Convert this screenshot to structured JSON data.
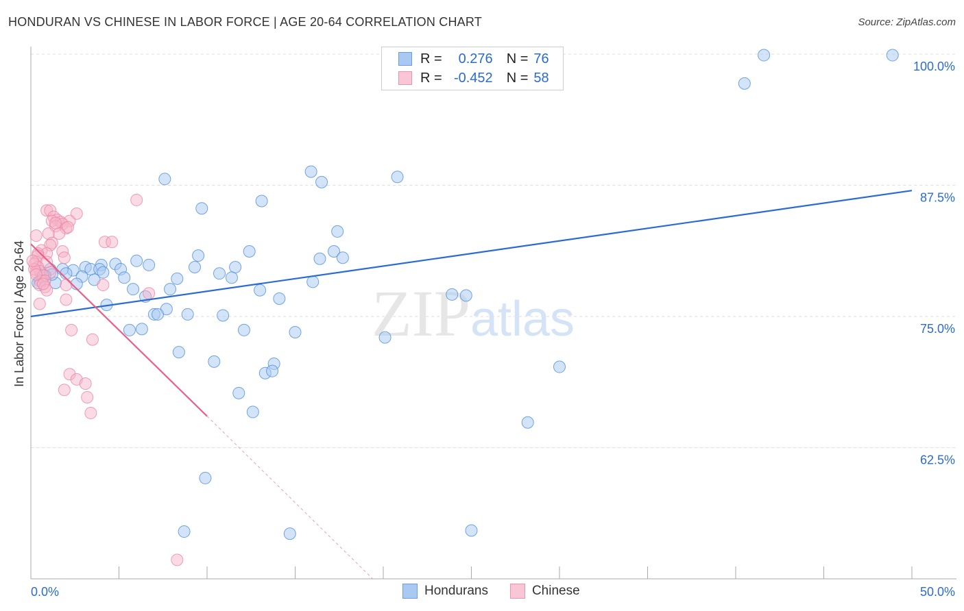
{
  "title": "HONDURAN VS CHINESE IN LABOR FORCE | AGE 20-64 CORRELATION CHART",
  "source": "Source: ZipAtlas.com",
  "watermark": "ZIPatlas",
  "colors": {
    "blue": "#2a6bd1",
    "blue_fill": "#a9c9f2",
    "pink": "#e8608a",
    "pink_fill": "#f6b6c9"
  },
  "legend": {
    "rows": [
      {
        "r_label": "R =",
        "r_value": "0.276",
        "n_label": "N =",
        "n_value": "76"
      },
      {
        "r_label": "R =",
        "r_value": "-0.452",
        "n_label": "N =",
        "n_value": "58"
      }
    ],
    "series": [
      "Hondurans",
      "Chinese"
    ]
  },
  "chart_data": {
    "type": "scatter",
    "title": "HONDURAN VS CHINESE IN LABOR FORCE | AGE 20-64 CORRELATION CHART",
    "xlabel": "",
    "ylabel": "In Labor Force | Age 20-64",
    "xlim": [
      0,
      50
    ],
    "ylim": [
      50,
      100
    ],
    "x_tick_labels": [
      "0.0%",
      "50.0%"
    ],
    "y_ticks": [
      100,
      87.5,
      75,
      62.5
    ],
    "y_tick_labels": [
      "100.0%",
      "87.5%",
      "75.0%",
      "62.5%"
    ],
    "grid": true,
    "legend_position": "top-center",
    "series": [
      {
        "name": "Hondurans",
        "R": 0.276,
        "N": 76,
        "trend": {
          "x": [
            0,
            50
          ],
          "y": [
            75.0,
            87.0
          ]
        },
        "points": [
          [
            41.6,
            99.9
          ],
          [
            48.9,
            99.9
          ],
          [
            40.5,
            97.2
          ],
          [
            15.9,
            88.8
          ],
          [
            16.5,
            87.8
          ],
          [
            20.8,
            88.3
          ],
          [
            7.6,
            88.1
          ],
          [
            13.1,
            86.0
          ],
          [
            9.7,
            85.3
          ],
          [
            17.4,
            83.1
          ],
          [
            12.4,
            81.2
          ],
          [
            9.5,
            80.8
          ],
          [
            17.2,
            81.2
          ],
          [
            17.7,
            80.6
          ],
          [
            16.4,
            80.5
          ],
          [
            6.0,
            80.3
          ],
          [
            6.7,
            79.9
          ],
          [
            4.0,
            79.9
          ],
          [
            4.8,
            80.0
          ],
          [
            3.1,
            79.7
          ],
          [
            3.4,
            79.5
          ],
          [
            9.3,
            79.7
          ],
          [
            11.6,
            79.7
          ],
          [
            2.4,
            79.4
          ],
          [
            1.8,
            79.5
          ],
          [
            1.1,
            79.5
          ],
          [
            0.6,
            79.1
          ],
          [
            2.0,
            79.1
          ],
          [
            2.9,
            78.8
          ],
          [
            3.9,
            79.5
          ],
          [
            5.1,
            79.5
          ],
          [
            10.7,
            79.1
          ],
          [
            11.4,
            78.7
          ],
          [
            5.3,
            78.7
          ],
          [
            8.3,
            78.6
          ],
          [
            3.6,
            78.5
          ],
          [
            2.6,
            78.1
          ],
          [
            1.4,
            78.2
          ],
          [
            0.5,
            78.4
          ],
          [
            0.4,
            78.2
          ],
          [
            0.7,
            78.7
          ],
          [
            16.0,
            78.3
          ],
          [
            5.8,
            77.6
          ],
          [
            7.9,
            77.6
          ],
          [
            13.0,
            77.5
          ],
          [
            6.5,
            76.9
          ],
          [
            14.1,
            76.7
          ],
          [
            4.3,
            76.1
          ],
          [
            7.7,
            75.7
          ],
          [
            7.0,
            75.2
          ],
          [
            7.2,
            75.2
          ],
          [
            8.9,
            75.2
          ],
          [
            10.9,
            75.1
          ],
          [
            23.9,
            77.1
          ],
          [
            24.7,
            77.0
          ],
          [
            5.6,
            73.7
          ],
          [
            6.3,
            73.8
          ],
          [
            12.1,
            73.7
          ],
          [
            15.0,
            73.5
          ],
          [
            20.1,
            73.0
          ],
          [
            8.4,
            71.6
          ],
          [
            10.4,
            70.7
          ],
          [
            13.8,
            70.5
          ],
          [
            13.3,
            69.6
          ],
          [
            13.7,
            69.8
          ],
          [
            30.0,
            70.2
          ],
          [
            11.8,
            67.7
          ],
          [
            12.6,
            65.9
          ],
          [
            28.2,
            64.9
          ],
          [
            9.9,
            59.6
          ],
          [
            8.7,
            54.5
          ],
          [
            14.7,
            54.3
          ],
          [
            25.0,
            54.6
          ],
          [
            1.2,
            79.0
          ],
          [
            0.8,
            78.9
          ],
          [
            4.1,
            79.2
          ]
        ]
      },
      {
        "name": "Chinese",
        "R": -0.452,
        "N": 58,
        "trend": {
          "x": [
            0,
            10
          ],
          "y": [
            81.9,
            65.5
          ],
          "dashed_extension": {
            "x": [
              10,
              19.4
            ],
            "y": [
              65.5,
              50
            ]
          }
        },
        "points": [
          [
            6.0,
            86.1
          ],
          [
            0.9,
            85.1
          ],
          [
            1.1,
            85.1
          ],
          [
            2.6,
            84.8
          ],
          [
            1.3,
            84.5
          ],
          [
            1.5,
            84.2
          ],
          [
            1.2,
            84.1
          ],
          [
            1.7,
            84.0
          ],
          [
            2.2,
            84.1
          ],
          [
            1.8,
            83.8
          ],
          [
            1.4,
            83.6
          ],
          [
            2.0,
            83.4
          ],
          [
            2.1,
            83.5
          ],
          [
            1.6,
            82.9
          ],
          [
            1.0,
            82.9
          ],
          [
            0.3,
            82.7
          ],
          [
            4.2,
            82.1
          ],
          [
            4.6,
            82.1
          ],
          [
            1.2,
            82.0
          ],
          [
            1.1,
            81.8
          ],
          [
            1.8,
            81.2
          ],
          [
            0.6,
            81.3
          ],
          [
            0.9,
            81.0
          ],
          [
            0.4,
            81.0
          ],
          [
            0.4,
            80.8
          ],
          [
            1.9,
            80.6
          ],
          [
            0.3,
            80.2
          ],
          [
            0.9,
            80.2
          ],
          [
            0.2,
            80.0
          ],
          [
            0.4,
            79.7
          ],
          [
            0.5,
            79.3
          ],
          [
            0.3,
            79.2
          ],
          [
            1.1,
            79.2
          ],
          [
            0.7,
            78.9
          ],
          [
            0.6,
            78.4
          ],
          [
            0.8,
            78.4
          ],
          [
            0.5,
            78.0
          ],
          [
            0.8,
            77.8
          ],
          [
            2.0,
            78.0
          ],
          [
            4.1,
            78.0
          ],
          [
            0.9,
            77.5
          ],
          [
            6.7,
            77.2
          ],
          [
            2.0,
            76.6
          ],
          [
            0.5,
            76.2
          ],
          [
            2.3,
            73.7
          ],
          [
            3.5,
            72.8
          ],
          [
            2.2,
            69.5
          ],
          [
            2.6,
            69.0
          ],
          [
            3.1,
            68.6
          ],
          [
            1.9,
            68.0
          ],
          [
            3.2,
            67.3
          ],
          [
            3.4,
            65.8
          ],
          [
            8.3,
            51.8
          ],
          [
            0.2,
            79.5
          ],
          [
            0.3,
            79.0
          ],
          [
            0.1,
            80.3
          ],
          [
            0.7,
            78.1
          ],
          [
            1.4,
            83.9
          ]
        ]
      }
    ]
  }
}
